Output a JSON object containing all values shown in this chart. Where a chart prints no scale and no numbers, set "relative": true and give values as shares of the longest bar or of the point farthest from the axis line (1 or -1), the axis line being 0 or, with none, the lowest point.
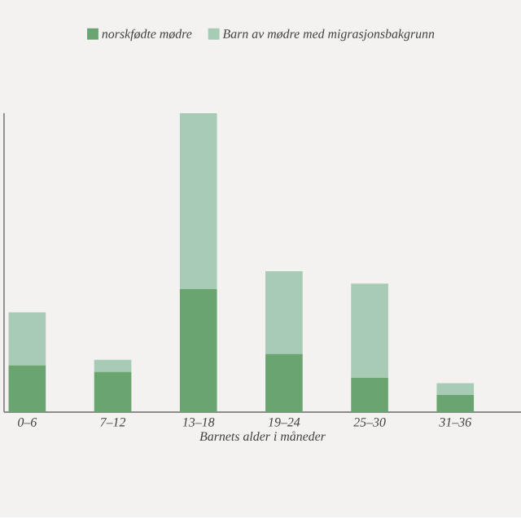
{
  "chart_data": {
    "type": "bar",
    "stacked": true,
    "relative": true,
    "categories": [
      "0–6",
      "7–12",
      "13–18",
      "19–24",
      "25–30",
      "31–36"
    ],
    "xlabel": "Barnets alder i måneder",
    "legend": "top",
    "series": [
      {
        "name": "norskfødte mødre",
        "color": "#6aa571",
        "values": [
          0.157,
          0.135,
          0.411,
          0.195,
          0.115,
          0.058
        ]
      },
      {
        "name": "Barn av mødre med migrasjonsbakgrunn",
        "color": "#a8cbb5",
        "values": [
          0.177,
          0.04,
          0.589,
          0.276,
          0.315,
          0.039
        ]
      }
    ]
  }
}
